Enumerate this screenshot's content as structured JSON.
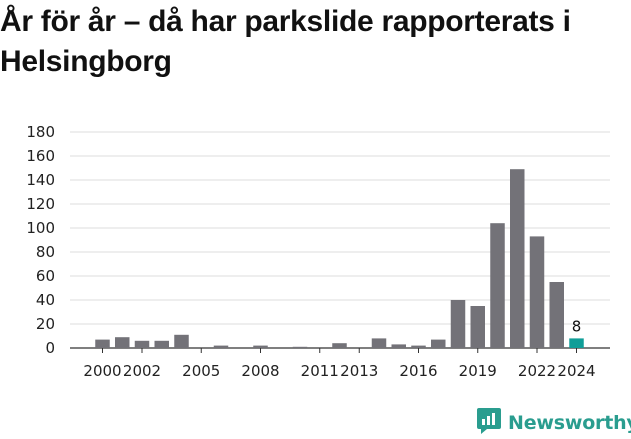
{
  "title": "År för år – då har parkslide rapporterats i Helsingborg",
  "brand": {
    "name": "Newsworthy",
    "icon": "newsworthy-logo-icon",
    "color": "#2a9d8f"
  },
  "colors": {
    "bar": "#737278",
    "highlight": "#109e98",
    "grid": "#dddddd",
    "axis": "#333333"
  },
  "chart_data": {
    "type": "bar",
    "title": "År för år – då har parkslide rapporterats i Helsingborg",
    "xlabel": "",
    "ylabel": "",
    "categories": [
      "2000",
      "2001",
      "2002",
      "2003",
      "2004",
      "2005",
      "2006",
      "2007",
      "2008",
      "2009",
      "2010",
      "2011",
      "2012",
      "2013",
      "2014",
      "2015",
      "2016",
      "2017",
      "2018",
      "2019",
      "2020",
      "2021",
      "2022",
      "2023",
      "2024"
    ],
    "values": [
      7,
      9,
      6,
      6,
      11,
      0,
      2,
      0,
      2,
      0,
      1,
      0,
      4,
      0,
      8,
      3,
      2,
      7,
      40,
      35,
      104,
      149,
      93,
      55,
      8
    ],
    "x_tick_labels": [
      "2000",
      "2002",
      "2005",
      "2008",
      "2011",
      "2013",
      "2016",
      "2019",
      "2022",
      "2024"
    ],
    "yticks": [
      0,
      20,
      40,
      60,
      80,
      100,
      120,
      140,
      160,
      180
    ],
    "ylim": [
      0,
      180
    ],
    "highlight_category": "2024",
    "data_labels": [
      {
        "category": "2024",
        "text": "8"
      }
    ],
    "grid": true,
    "legend": "none"
  }
}
